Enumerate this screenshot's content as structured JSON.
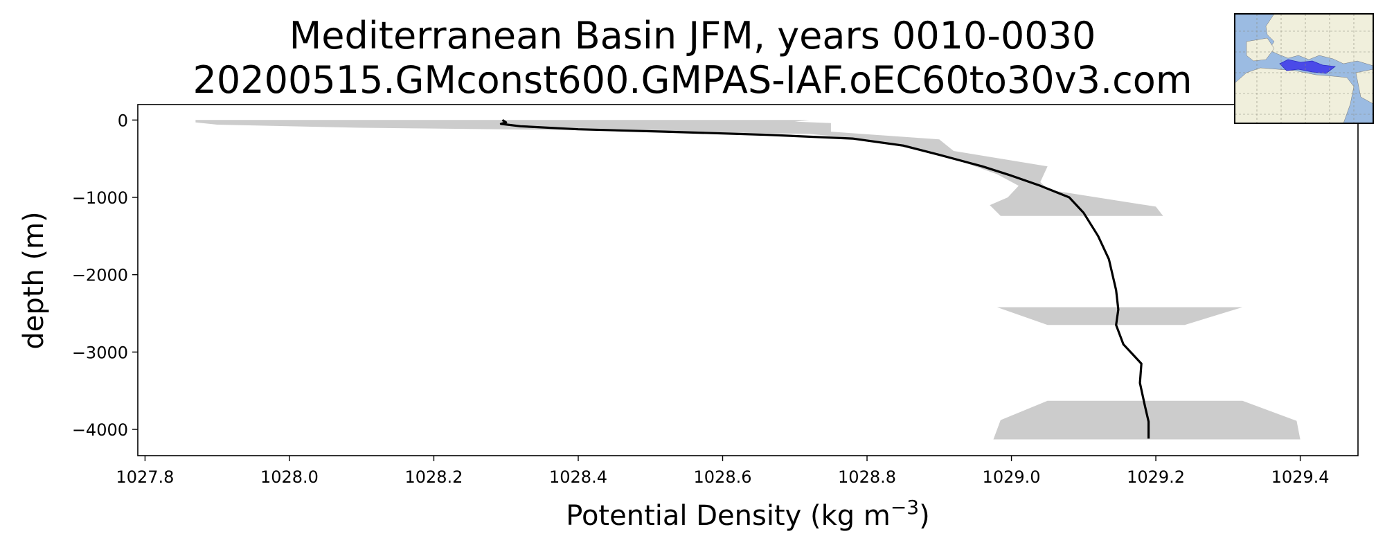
{
  "chart_data": {
    "type": "line",
    "title": "Mediterranean Basin JFM, years 0010-0030",
    "subtitle": "20200515.GMconst600.GMPAS-IAF.oEC60to30v3.com",
    "xlabel": "Potential Density (kg m",
    "xlabel_sup": "−3",
    "xlabel_end": ")",
    "ylabel": "depth (m)",
    "xlim": [
      1027.79,
      1029.48
    ],
    "ylim": [
      -4340,
      200
    ],
    "x_ticks": [
      1027.8,
      1028.0,
      1028.2,
      1028.4,
      1028.6,
      1028.8,
      1029.0,
      1029.2,
      1029.4
    ],
    "x_tick_labels": [
      "1027.8",
      "1028.0",
      "1028.2",
      "1028.4",
      "1028.6",
      "1028.8",
      "1029.0",
      "1029.2",
      "1029.4"
    ],
    "y_ticks": [
      0,
      -1000,
      -2000,
      -3000,
      -4000
    ],
    "y_tick_labels": [
      "0",
      "−1000",
      "−2000",
      "−3000",
      "−4000"
    ],
    "grid": false,
    "colors": {
      "line": "#000000",
      "band": "#cccccc",
      "ocean": "#9bbbe2",
      "land": "#f0efdc",
      "region": "#4a4ae8"
    },
    "series": [
      {
        "kind": "line",
        "points": [
          [
            1028.295,
            0
          ],
          [
            1028.3,
            -30
          ],
          [
            1028.293,
            -50
          ],
          [
            1028.32,
            -80
          ],
          [
            1028.4,
            -120
          ],
          [
            1028.52,
            -150
          ],
          [
            1028.66,
            -190
          ],
          [
            1028.78,
            -240
          ],
          [
            1028.85,
            -330
          ],
          [
            1028.9,
            -450
          ],
          [
            1028.96,
            -600
          ],
          [
            1029.0,
            -720
          ],
          [
            1029.04,
            -850
          ],
          [
            1029.08,
            -1000
          ],
          [
            1029.1,
            -1200
          ],
          [
            1029.12,
            -1500
          ],
          [
            1029.135,
            -1800
          ],
          [
            1029.145,
            -2200
          ],
          [
            1029.148,
            -2450
          ],
          [
            1029.145,
            -2650
          ],
          [
            1029.155,
            -2900
          ],
          [
            1029.18,
            -3150
          ],
          [
            1029.178,
            -3400
          ],
          [
            1029.185,
            -3700
          ],
          [
            1029.19,
            -3900
          ],
          [
            1029.19,
            -4120
          ]
        ]
      }
    ],
    "bands": [
      {
        "points": [
          [
            1027.87,
            0
          ],
          [
            1028.72,
            0
          ],
          [
            1028.7,
            -20
          ],
          [
            1028.75,
            -40
          ],
          [
            1028.75,
            -150
          ],
          [
            1028.9,
            -250
          ],
          [
            1028.92,
            -400
          ],
          [
            1029.05,
            -600
          ],
          [
            1029.04,
            -800
          ],
          [
            1029.05,
            -900
          ],
          [
            1029.2,
            -1120
          ],
          [
            1029.21,
            -1240
          ],
          [
            1028.985,
            -1240
          ],
          [
            1028.97,
            -1100
          ],
          [
            1028.995,
            -1000
          ],
          [
            1029.01,
            -850
          ],
          [
            1028.98,
            -700
          ],
          [
            1028.92,
            -500
          ],
          [
            1028.85,
            -350
          ],
          [
            1028.8,
            -250
          ],
          [
            1028.72,
            -180
          ],
          [
            1028.4,
            -130
          ],
          [
            1028.1,
            -100
          ],
          [
            1027.9,
            -60
          ],
          [
            1027.87,
            -30
          ]
        ]
      },
      {
        "points": [
          [
            1028.98,
            -2420
          ],
          [
            1029.32,
            -2420
          ],
          [
            1029.24,
            -2650
          ],
          [
            1029.05,
            -2650
          ]
        ]
      },
      {
        "points": [
          [
            1029.05,
            -3630
          ],
          [
            1029.32,
            -3630
          ],
          [
            1029.395,
            -3890
          ],
          [
            1029.4,
            -4130
          ],
          [
            1028.975,
            -4130
          ],
          [
            1028.985,
            -3880
          ]
        ]
      }
    ]
  }
}
